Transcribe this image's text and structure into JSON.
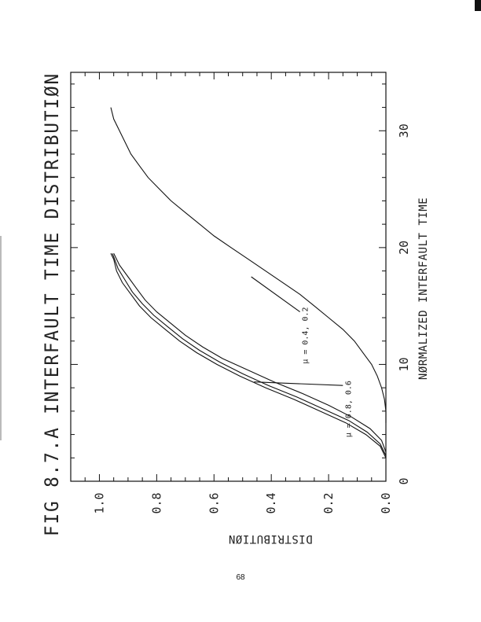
{
  "page": {
    "number": "68"
  },
  "chart_data": {
    "type": "line",
    "orientation": "rotated-90-ccw",
    "title": "FIG 8.7.A INTERFAULT TIME DISTRIBUTIØN",
    "xlabel": "NØRMALIZED INTERFAULT TIME",
    "ylabel": "DISTRIBUTIØN",
    "xlim": [
      0,
      35
    ],
    "ylim": [
      0,
      1.1
    ],
    "x_ticks": [
      0,
      10,
      20,
      30
    ],
    "x_tick_labels": [
      "0",
      "10",
      "20",
      "30"
    ],
    "y_ticks": [
      0.0,
      0.2,
      0.4,
      0.6,
      0.8,
      1.0
    ],
    "y_tick_labels": [
      "0.0",
      "0.2",
      "0.4",
      "0.6",
      "0.8",
      "1.0"
    ],
    "grid": false,
    "annotations": [
      {
        "text": "μ = 0.8, 0.6",
        "x": 8.5,
        "y": 0.46,
        "label_x": 8.2,
        "label_y": 0.15
      },
      {
        "text": "μ = 0.4, 0.2",
        "x": 17.5,
        "y": 0.47,
        "label_x": 14.5,
        "label_y": 0.3
      }
    ],
    "series": [
      {
        "x": [
          2,
          3,
          4,
          5,
          6,
          7,
          8,
          9,
          10,
          11,
          12,
          13,
          14,
          15,
          16,
          17,
          18,
          19,
          19.5
        ],
        "y": [
          0.0,
          0.02,
          0.07,
          0.14,
          0.23,
          0.32,
          0.42,
          0.51,
          0.59,
          0.66,
          0.72,
          0.77,
          0.82,
          0.86,
          0.89,
          0.92,
          0.94,
          0.95,
          0.96
        ]
      },
      {
        "x": [
          2.2,
          3.2,
          4.2,
          5.2,
          6.2,
          7.2,
          8.2,
          9.2,
          10.2,
          11.2,
          12.2,
          13.2,
          14.2,
          15.2,
          16.2,
          17.2,
          18.2,
          19.2,
          19.5
        ],
        "y": [
          0.0,
          0.02,
          0.065,
          0.13,
          0.22,
          0.31,
          0.41,
          0.5,
          0.58,
          0.65,
          0.71,
          0.76,
          0.81,
          0.85,
          0.885,
          0.91,
          0.935,
          0.95,
          0.955
        ]
      },
      {
        "x": [
          2.5,
          3.5,
          4.5,
          5.5,
          6.5,
          7.5,
          8.5,
          9.5,
          10.5,
          11.5,
          12.5,
          13.5,
          14.5,
          15.5,
          16.5,
          17.5,
          18.5,
          19.5
        ],
        "y": [
          0.0,
          0.015,
          0.055,
          0.12,
          0.2,
          0.29,
          0.39,
          0.48,
          0.57,
          0.64,
          0.7,
          0.75,
          0.8,
          0.84,
          0.87,
          0.9,
          0.93,
          0.95
        ]
      },
      {
        "x": [
          5,
          6,
          7,
          8,
          9,
          10,
          11,
          12,
          13,
          14,
          15,
          16,
          17,
          18,
          19,
          20,
          21,
          22,
          23,
          24,
          25,
          26,
          27,
          28,
          29,
          30,
          31,
          32
        ],
        "y": [
          0.0,
          0.0,
          0.005,
          0.015,
          0.03,
          0.05,
          0.08,
          0.11,
          0.15,
          0.2,
          0.25,
          0.3,
          0.36,
          0.42,
          0.48,
          0.54,
          0.6,
          0.65,
          0.7,
          0.75,
          0.79,
          0.83,
          0.86,
          0.89,
          0.91,
          0.93,
          0.95,
          0.96
        ]
      }
    ]
  }
}
